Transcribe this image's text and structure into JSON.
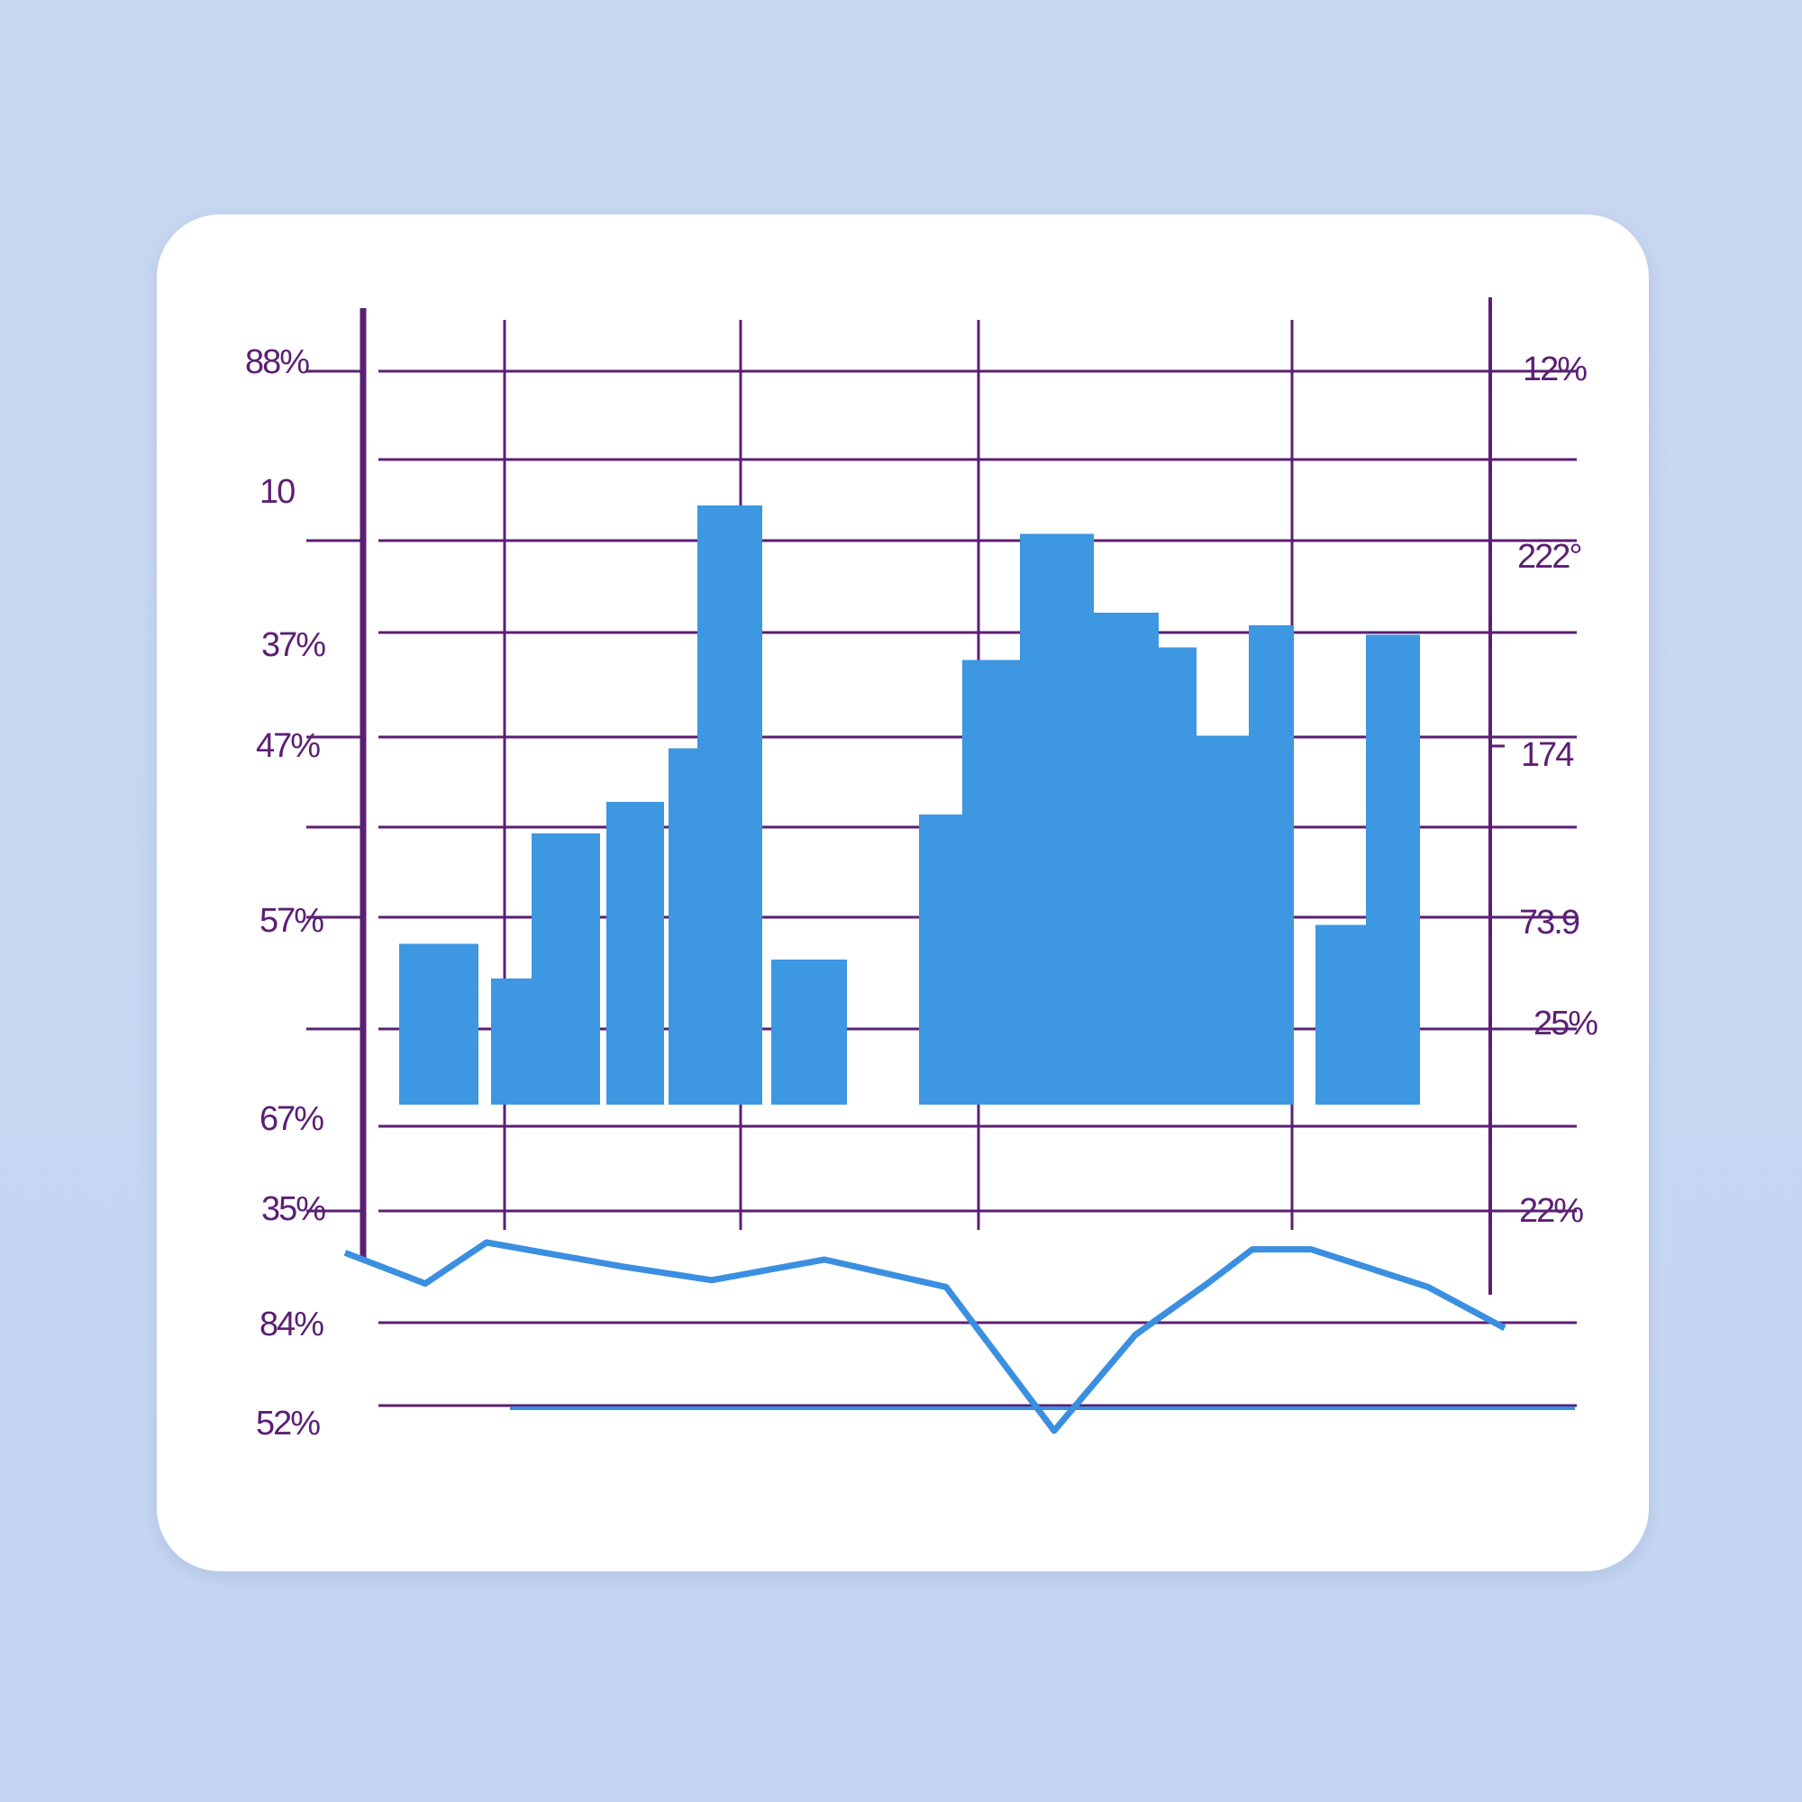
{
  "colors": {
    "background": "#c7d7f2",
    "card": "#ffffff",
    "grid": "#5b1f73",
    "bars": "#3d97e1",
    "line": "#3b8fe0"
  },
  "chart_data": [
    {
      "type": "bar",
      "title": "",
      "xlabel": "",
      "ylabel": "",
      "left_tick_labels": [
        "88%",
        "10",
        "37%",
        "47%",
        "57%",
        "67%",
        "35%"
      ],
      "right_tick_labels": [
        "12%",
        "222°",
        "174",
        "73.9",
        "25%",
        "22%"
      ],
      "grid": true,
      "values": [
        0.51,
        0.4,
        0.86,
        0.96,
        1.13,
        1.9,
        0.46,
        0.92,
        1.41,
        1.81,
        1.56,
        1.45,
        1.17,
        1.52,
        0.57,
        1.49
      ]
    },
    {
      "type": "line",
      "left_tick_labels": [
        "84%",
        "52%"
      ],
      "values": [
        52,
        43,
        55,
        48,
        44,
        50,
        42,
        0,
        28,
        43,
        53,
        53,
        42,
        30,
        35
      ]
    }
  ]
}
